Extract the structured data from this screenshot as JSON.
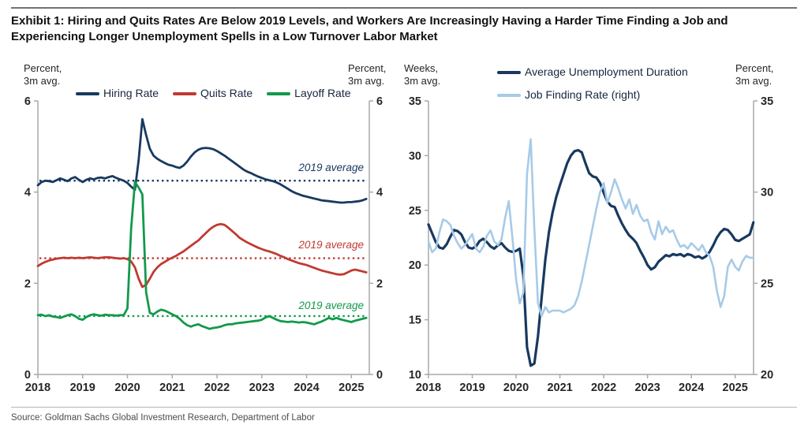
{
  "header": {
    "title_line1": "Exhibit 1: Hiring and Quits Rates Are Below 2019 Levels, and Workers Are Increasingly Having a Harder Time Finding a Job and",
    "title_line2": "Experiencing Longer Unemployment Spells in a Low Turnover Labor Market"
  },
  "footer": {
    "source": "Source: Goldman Sachs Global Investment Research, Department of Labor"
  },
  "colors": {
    "navy": "#18395f",
    "red": "#c03a32",
    "green": "#12994c",
    "light_blue": "#a6cbe8",
    "axis": "#a9a9a9",
    "tick_text": "#262626"
  },
  "chart_data": [
    {
      "type": "line",
      "panel": "left",
      "axis_left_label": [
        "Percent,",
        "3m avg."
      ],
      "axis_right_label": [
        "Percent,",
        "3m avg."
      ],
      "x_tick_labels": [
        "2018",
        "2019",
        "2020",
        "2021",
        "2022",
        "2023",
        "2024",
        "2025"
      ],
      "y_ticks": [
        0,
        2,
        4,
        6
      ],
      "ylim": [
        0,
        6
      ],
      "x_start_year": 2018,
      "points_per_month": 1,
      "grid": false,
      "legend_position": "top",
      "series": [
        {
          "name": "Hiring Rate",
          "color": "#18395f",
          "values": [
            4.15,
            4.22,
            4.25,
            4.24,
            4.22,
            4.26,
            4.3,
            4.27,
            4.24,
            4.3,
            4.33,
            4.27,
            4.22,
            4.27,
            4.3,
            4.28,
            4.31,
            4.32,
            4.3,
            4.33,
            4.35,
            4.31,
            4.28,
            4.25,
            4.2,
            4.12,
            4.05,
            4.7,
            5.6,
            5.25,
            4.95,
            4.8,
            4.73,
            4.68,
            4.64,
            4.6,
            4.58,
            4.55,
            4.53,
            4.58,
            4.67,
            4.78,
            4.87,
            4.93,
            4.96,
            4.97,
            4.96,
            4.94,
            4.9,
            4.85,
            4.8,
            4.74,
            4.68,
            4.62,
            4.56,
            4.5,
            4.45,
            4.42,
            4.38,
            4.34,
            4.31,
            4.28,
            4.26,
            4.24,
            4.21,
            4.17,
            4.12,
            4.07,
            4.02,
            3.98,
            3.95,
            3.92,
            3.9,
            3.88,
            3.86,
            3.84,
            3.82,
            3.81,
            3.8,
            3.79,
            3.78,
            3.77,
            3.77,
            3.78,
            3.78,
            3.79,
            3.8,
            3.82,
            3.85
          ]
        },
        {
          "name": "Quits Rate",
          "color": "#c03a32",
          "values": [
            2.38,
            2.43,
            2.47,
            2.5,
            2.52,
            2.54,
            2.55,
            2.56,
            2.55,
            2.56,
            2.55,
            2.56,
            2.55,
            2.56,
            2.57,
            2.56,
            2.55,
            2.56,
            2.57,
            2.57,
            2.56,
            2.55,
            2.54,
            2.55,
            2.53,
            2.48,
            2.35,
            2.1,
            1.92,
            1.97,
            2.1,
            2.25,
            2.35,
            2.42,
            2.47,
            2.52,
            2.56,
            2.6,
            2.65,
            2.7,
            2.76,
            2.82,
            2.88,
            2.94,
            3.02,
            3.1,
            3.18,
            3.24,
            3.28,
            3.3,
            3.28,
            3.22,
            3.15,
            3.08,
            3.0,
            2.95,
            2.9,
            2.86,
            2.82,
            2.78,
            2.75,
            2.72,
            2.7,
            2.67,
            2.64,
            2.6,
            2.57,
            2.53,
            2.5,
            2.47,
            2.44,
            2.42,
            2.4,
            2.37,
            2.34,
            2.31,
            2.28,
            2.26,
            2.24,
            2.22,
            2.2,
            2.19,
            2.2,
            2.24,
            2.28,
            2.3,
            2.28,
            2.26,
            2.24
          ]
        },
        {
          "name": "Layoff Rate",
          "color": "#12994c",
          "values": [
            1.3,
            1.31,
            1.28,
            1.3,
            1.27,
            1.26,
            1.24,
            1.27,
            1.3,
            1.32,
            1.28,
            1.22,
            1.2,
            1.26,
            1.3,
            1.32,
            1.3,
            1.29,
            1.31,
            1.3,
            1.3,
            1.29,
            1.3,
            1.3,
            1.45,
            3.2,
            4.22,
            4.1,
            3.95,
            1.8,
            1.35,
            1.32,
            1.38,
            1.42,
            1.4,
            1.36,
            1.32,
            1.28,
            1.22,
            1.14,
            1.08,
            1.05,
            1.08,
            1.1,
            1.06,
            1.03,
            1.0,
            1.02,
            1.03,
            1.05,
            1.08,
            1.1,
            1.1,
            1.12,
            1.13,
            1.14,
            1.15,
            1.16,
            1.17,
            1.18,
            1.2,
            1.25,
            1.28,
            1.24,
            1.2,
            1.17,
            1.16,
            1.15,
            1.16,
            1.15,
            1.14,
            1.15,
            1.14,
            1.12,
            1.1,
            1.13,
            1.16,
            1.2,
            1.24,
            1.21,
            1.24,
            1.21,
            1.19,
            1.17,
            1.15,
            1.18,
            1.2,
            1.22,
            1.24
          ]
        }
      ],
      "avg_lines": [
        {
          "label": "2019 average",
          "value": 4.25,
          "color": "#18395f"
        },
        {
          "label": "2019 average",
          "value": 2.55,
          "color": "#c03a32"
        },
        {
          "label": "2019 average",
          "value": 1.28,
          "color": "#12994c"
        }
      ]
    },
    {
      "type": "line",
      "panel": "right",
      "axis_left_label": [
        "Weeks,",
        "3m avg."
      ],
      "axis_right_label": [
        "Percent,",
        "3m avg."
      ],
      "x_tick_labels": [
        "2018",
        "2019",
        "2020",
        "2021",
        "2022",
        "2023",
        "2024",
        "2025"
      ],
      "y_ticks_left": [
        10,
        15,
        20,
        25,
        30,
        35
      ],
      "ylim_left": [
        10,
        35
      ],
      "y_ticks_right": [
        20,
        25,
        30,
        35
      ],
      "ylim_right": [
        20,
        35
      ],
      "x_start_year": 2018,
      "grid": false,
      "legend_position": "top",
      "series": [
        {
          "name": "Average Unemployment Duration",
          "axis": "left",
          "color": "#18395f",
          "values": [
            23.7,
            22.9,
            22.1,
            21.6,
            21.5,
            21.9,
            22.6,
            23.2,
            23.1,
            22.8,
            22.1,
            21.6,
            21.5,
            21.7,
            22.2,
            22.4,
            22.1,
            21.7,
            21.5,
            21.8,
            22.0,
            21.6,
            21.3,
            21.2,
            21.3,
            21.5,
            19.0,
            12.5,
            10.8,
            11.0,
            13.5,
            17.0,
            20.5,
            23.0,
            24.8,
            26.2,
            27.3,
            28.3,
            29.3,
            30.0,
            30.4,
            30.5,
            30.3,
            29.3,
            28.4,
            28.1,
            28.0,
            27.5,
            26.6,
            25.8,
            25.4,
            25.3,
            24.5,
            23.8,
            23.2,
            22.7,
            22.4,
            22.0,
            21.3,
            20.7,
            20.0,
            19.6,
            19.8,
            20.3,
            20.6,
            20.9,
            20.8,
            21.0,
            20.9,
            21.0,
            20.8,
            21.0,
            20.9,
            20.7,
            20.8,
            20.6,
            20.8,
            21.2,
            21.8,
            22.5,
            23.0,
            23.3,
            23.2,
            22.8,
            22.3,
            22.2,
            22.4,
            22.6,
            22.8,
            23.9
          ]
        },
        {
          "name": "Job Finding Rate (right)",
          "axis": "right",
          "color": "#a6cbe8",
          "values": [
            27.3,
            26.7,
            26.9,
            27.8,
            28.5,
            28.4,
            28.2,
            27.6,
            27.2,
            26.9,
            27.1,
            27.4,
            27.7,
            26.9,
            26.7,
            27.0,
            27.6,
            27.9,
            27.3,
            27.1,
            27.4,
            28.6,
            29.5,
            27.5,
            25.2,
            23.9,
            24.5,
            31.0,
            32.9,
            28.0,
            23.9,
            23.2,
            23.7,
            23.4,
            23.5,
            23.5,
            23.5,
            23.4,
            23.5,
            23.6,
            23.8,
            24.3,
            25.1,
            26.1,
            27.1,
            28.1,
            29.1,
            30.0,
            30.5,
            29.4,
            30.0,
            30.7,
            30.2,
            29.6,
            29.1,
            29.6,
            28.8,
            29.3,
            28.7,
            28.4,
            28.5,
            27.8,
            27.4,
            28.4,
            27.7,
            28.1,
            27.8,
            27.9,
            27.4,
            27.0,
            27.1,
            26.9,
            27.2,
            27.0,
            26.8,
            27.1,
            26.7,
            26.5,
            25.9,
            24.6,
            23.7,
            24.3,
            25.9,
            26.3,
            25.9,
            25.7,
            26.2,
            26.5,
            26.4,
            26.4
          ]
        }
      ]
    }
  ]
}
